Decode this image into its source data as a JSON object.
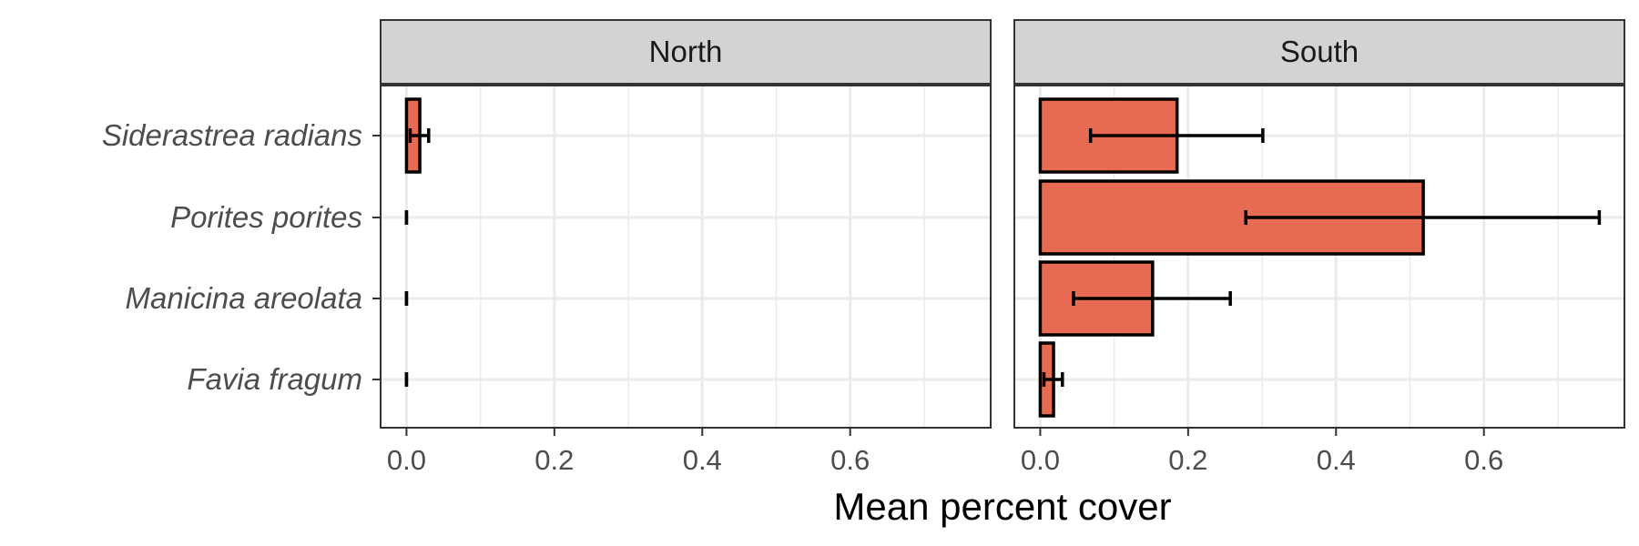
{
  "chart_data": {
    "type": "bar",
    "orientation": "horizontal",
    "facet_variable": "region",
    "facets": [
      "North",
      "South"
    ],
    "categories": [
      "Siderastrea radians",
      "Porites porites",
      "Manicina areolata",
      "Favia fragum"
    ],
    "series": [
      {
        "facet": "North",
        "values": [
          0.018,
          0.0,
          0.0,
          0.0
        ],
        "error_low": [
          0.005,
          0.0,
          0.0,
          0.0
        ],
        "error_high": [
          0.03,
          0.0,
          0.0,
          0.0
        ]
      },
      {
        "facet": "South",
        "values": [
          0.185,
          0.518,
          0.152,
          0.018
        ],
        "error_low": [
          0.068,
          0.278,
          0.045,
          0.005
        ],
        "error_high": [
          0.301,
          0.756,
          0.257,
          0.03
        ]
      }
    ],
    "xlabel": "Mean percent cover",
    "ylabel": "",
    "xlim": [
      -0.035,
      0.79
    ],
    "xticks": [
      "0.0",
      "0.2",
      "0.4",
      "0.6"
    ],
    "xtick_values": [
      0,
      0.2,
      0.4,
      0.6
    ],
    "grid": true,
    "bar_color": "#E76B52",
    "bar_outline_color": "#000000",
    "strip_color": "#D3D3D3",
    "grid_color": "#EBEBEB"
  }
}
